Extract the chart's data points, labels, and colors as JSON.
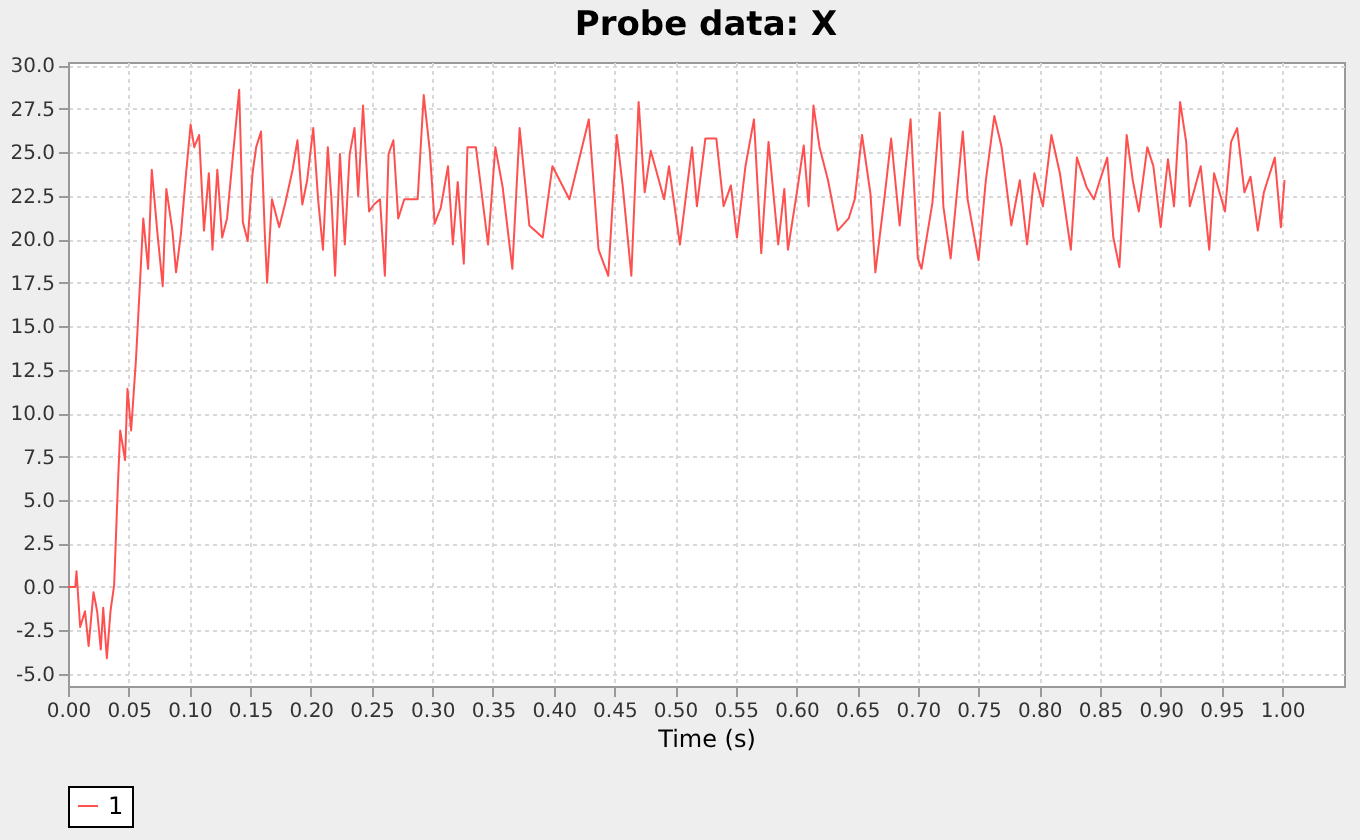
{
  "chart_data": {
    "type": "line",
    "title": "Probe data: X",
    "xlabel": "Time (s)",
    "xlim": [
      0,
      1.051
    ],
    "ylim": [
      -5.7,
      30.2
    ],
    "xticks": [
      {
        "value": 0,
        "label": "0.00"
      },
      {
        "value": 0.05,
        "label": "0.05"
      },
      {
        "value": 0.1,
        "label": "0.10"
      },
      {
        "value": 0.15,
        "label": "0.15"
      },
      {
        "value": 0.2,
        "label": "0.20"
      },
      {
        "value": 0.25,
        "label": "0.25"
      },
      {
        "value": 0.3,
        "label": "0.30"
      },
      {
        "value": 0.35,
        "label": "0.35"
      },
      {
        "value": 0.4,
        "label": "0.40"
      },
      {
        "value": 0.45,
        "label": "0.45"
      },
      {
        "value": 0.5,
        "label": "0.50"
      },
      {
        "value": 0.55,
        "label": "0.55"
      },
      {
        "value": 0.6,
        "label": "0.60"
      },
      {
        "value": 0.65,
        "label": "0.65"
      },
      {
        "value": 0.7,
        "label": "0.70"
      },
      {
        "value": 0.75,
        "label": "0.75"
      },
      {
        "value": 0.8,
        "label": "0.80"
      },
      {
        "value": 0.85,
        "label": "0.85"
      },
      {
        "value": 0.9,
        "label": "0.90"
      },
      {
        "value": 0.95,
        "label": "0.95"
      },
      {
        "value": 1,
        "label": "1.00"
      }
    ],
    "yticks": [
      {
        "value": -5,
        "label": "-5.0"
      },
      {
        "value": -2.5,
        "label": "-2.5"
      },
      {
        "value": 0,
        "label": "0.0"
      },
      {
        "value": 2.5,
        "label": "2.5"
      },
      {
        "value": 5,
        "label": "5.0"
      },
      {
        "value": 7.5,
        "label": "7.5"
      },
      {
        "value": 10,
        "label": "10.0"
      },
      {
        "value": 12.5,
        "label": "12.5"
      },
      {
        "value": 15,
        "label": "15.0"
      },
      {
        "value": 17.5,
        "label": "17.5"
      },
      {
        "value": 20,
        "label": "20.0"
      },
      {
        "value": 22.5,
        "label": "22.5"
      },
      {
        "value": 25,
        "label": "25.0"
      },
      {
        "value": 27.5,
        "label": "27.5"
      },
      {
        "value": 30,
        "label": "30.0"
      }
    ],
    "grid": true,
    "legend": "bottom",
    "line_style": "solid",
    "marker": "none",
    "x": [
      0,
      0.006,
      0.007,
      0.01,
      0.014,
      0.017,
      0.021,
      0.024,
      0.027,
      0.029,
      0.032,
      0.035,
      0.038,
      0.041,
      0.043,
      0.047,
      0.049,
      0.052,
      0.056,
      0.059,
      0.062,
      0.066,
      0.069,
      0.074,
      0.078,
      0.081,
      0.086,
      0.089,
      0.093,
      0.097,
      0.101,
      0.104,
      0.108,
      0.112,
      0.116,
      0.119,
      0.123,
      0.127,
      0.131,
      0.135,
      0.138,
      0.141,
      0.144,
      0.148,
      0.152,
      0.155,
      0.159,
      0.162,
      0.164,
      0.168,
      0.174,
      0.179,
      0.185,
      0.189,
      0.193,
      0.197,
      0.202,
      0.206,
      0.21,
      0.214,
      0.217,
      0.22,
      0.224,
      0.228,
      0.232,
      0.236,
      0.239,
      0.243,
      0.248,
      0.252,
      0.257,
      0.261,
      0.264,
      0.268,
      0.272,
      0.277,
      0.282,
      0.288,
      0.293,
      0.298,
      0.302,
      0.307,
      0.313,
      0.317,
      0.321,
      0.326,
      0.329,
      0.336,
      0.346,
      0.352,
      0.358,
      0.366,
      0.372,
      0.38,
      0.391,
      0.399,
      0.413,
      0.429,
      0.437,
      0.445,
      0.452,
      0.457,
      0.464,
      0.47,
      0.475,
      0.48,
      0.491,
      0.495,
      0.504,
      0.514,
      0.518,
      0.525,
      0.534,
      0.54,
      0.546,
      0.551,
      0.558,
      0.565,
      0.571,
      0.577,
      0.585,
      0.59,
      0.593,
      0.601,
      0.606,
      0.61,
      0.614,
      0.619,
      0.626,
      0.634,
      0.643,
      0.648,
      0.654,
      0.661,
      0.665,
      0.673,
      0.678,
      0.685,
      0.694,
      0.7,
      0.703,
      0.712,
      0.718,
      0.721,
      0.727,
      0.737,
      0.741,
      0.75,
      0.756,
      0.763,
      0.769,
      0.777,
      0.784,
      0.79,
      0.796,
      0.803,
      0.81,
      0.817,
      0.826,
      0.831,
      0.839,
      0.845,
      0.856,
      0.861,
      0.866,
      0.872,
      0.877,
      0.882,
      0.889,
      0.894,
      0.9,
      0.906,
      0.911,
      0.916,
      0.921,
      0.924,
      0.933,
      0.94,
      0.944,
      0.953,
      0.958,
      0.963,
      0.969,
      0.974,
      0.98,
      0.985,
      0.994,
      0.999,
      1.002
    ],
    "series": [
      {
        "name": "1",
        "color": "#ff5050",
        "values": [
          0,
          0,
          0.9,
          -2.3,
          -1.4,
          -3.4,
          -0.3,
          -1.4,
          -3.6,
          -1.2,
          -4.1,
          -1.4,
          0.1,
          5.7,
          9.0,
          7.3,
          11.4,
          9.0,
          13.1,
          17.1,
          21.2,
          18.3,
          24.0,
          20.1,
          17.3,
          22.9,
          20.5,
          18.1,
          20.3,
          23.6,
          26.6,
          25.3,
          26.0,
          20.5,
          23.8,
          19.4,
          24.0,
          20.1,
          21.2,
          24.2,
          26.4,
          28.6,
          21.0,
          19.9,
          23.8,
          25.3,
          26.2,
          20.5,
          17.5,
          22.3,
          20.7,
          22.1,
          24.0,
          25.7,
          22.0,
          23.4,
          26.4,
          22.3,
          19.4,
          25.3,
          22.3,
          17.9,
          24.9,
          19.7,
          24.9,
          26.4,
          22.5,
          27.7,
          21.6,
          22.0,
          22.3,
          17.9,
          24.9,
          25.7,
          21.2,
          22.3,
          22.3,
          22.3,
          28.3,
          25.1,
          20.9,
          21.8,
          24.2,
          19.7,
          23.3,
          18.6,
          25.3,
          25.3,
          19.7,
          25.3,
          23.0,
          18.3,
          26.4,
          20.8,
          20.1,
          24.2,
          22.3,
          26.9,
          19.4,
          17.9,
          26.0,
          23.0,
          17.9,
          27.9,
          22.7,
          25.1,
          22.3,
          24.2,
          19.7,
          25.3,
          21.9,
          25.8,
          25.8,
          21.9,
          23.1,
          20.1,
          24.2,
          26.9,
          19.2,
          25.6,
          19.7,
          22.9,
          19.4,
          23.0,
          25.4,
          21.9,
          27.7,
          25.3,
          23.4,
          20.5,
          21.2,
          22.3,
          26.0,
          22.6,
          18.1,
          22.7,
          25.8,
          20.8,
          26.9,
          18.9,
          18.3,
          22.1,
          27.3,
          21.9,
          18.9,
          26.2,
          22.3,
          18.8,
          23.4,
          27.1,
          25.3,
          20.8,
          23.4,
          19.7,
          23.8,
          21.9,
          26.0,
          23.8,
          19.4,
          24.7,
          23.0,
          22.3,
          24.7,
          20.1,
          18.4,
          26.0,
          23.4,
          21.6,
          25.3,
          24.2,
          20.7,
          24.6,
          21.9,
          27.9,
          25.6,
          21.9,
          24.2,
          19.4,
          23.8,
          21.6,
          25.6,
          26.4,
          22.7,
          23.6,
          20.5,
          22.7,
          24.7,
          20.7,
          23.4
        ]
      }
    ]
  }
}
